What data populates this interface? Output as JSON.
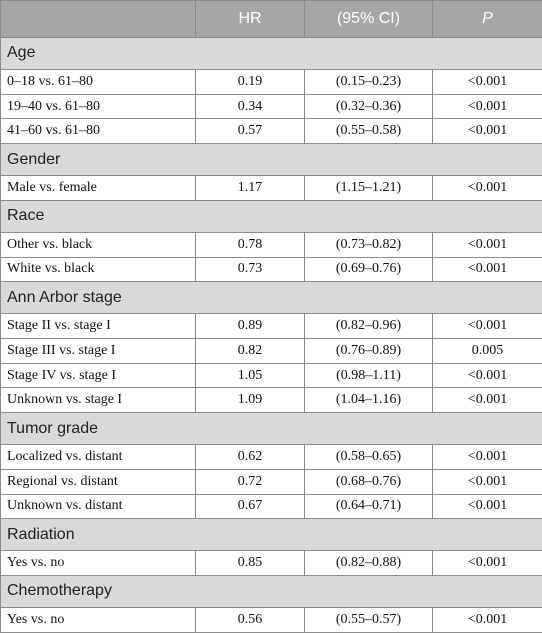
{
  "table": {
    "header": [
      "HR",
      "(95% CI)",
      "P"
    ],
    "sections": [
      {
        "title": "Age",
        "rows": [
          [
            "0–18 vs. 61–80",
            "0.19",
            "(0.15–0.23)",
            "<0.001"
          ],
          [
            "19–40 vs. 61–80",
            "0.34",
            "(0.32–0.36)",
            "<0.001"
          ],
          [
            "41–60 vs. 61–80",
            "0.57",
            "(0.55–0.58)",
            "<0.001"
          ]
        ]
      },
      {
        "title": "Gender",
        "rows": [
          [
            "Male vs. female",
            "1.17",
            "(1.15–1.21)",
            "<0.001"
          ]
        ]
      },
      {
        "title": "Race",
        "rows": [
          [
            "Other vs. black",
            "0.78",
            "(0.73–0.82)",
            "<0.001"
          ],
          [
            "White vs. black",
            "0.73",
            "(0.69–0.76)",
            "<0.001"
          ]
        ]
      },
      {
        "title": "Ann Arbor stage",
        "rows": [
          [
            "Stage II vs. stage I",
            "0.89",
            "(0.82–0.96)",
            "<0.001"
          ],
          [
            "Stage III vs. stage I",
            "0.82",
            "(0.76–0.89)",
            "0.005"
          ],
          [
            "Stage IV vs. stage I",
            "1.05",
            "(0.98–1.11)",
            "<0.001"
          ],
          [
            "Unknown vs. stage I",
            "1.09",
            "(1.04–1.16)",
            "<0.001"
          ]
        ]
      },
      {
        "title": "Tumor grade",
        "rows": [
          [
            "Localized vs. distant",
            "0.62",
            "(0.58–0.65)",
            "<0.001"
          ],
          [
            "Regional vs. distant",
            "0.72",
            "(0.68–0.76)",
            "<0.001"
          ],
          [
            "Unknown vs. distant",
            "0.67",
            "(0.64–0.71)",
            "<0.001"
          ]
        ]
      },
      {
        "title": "Radiation",
        "rows": [
          [
            "Yes vs. no",
            "0.85",
            "(0.82–0.88)",
            "<0.001"
          ]
        ]
      },
      {
        "title": "Chemotherapy",
        "rows": [
          [
            "Yes vs. no",
            "0.56",
            "(0.55–0.57)",
            "<0.001"
          ]
        ]
      }
    ]
  }
}
